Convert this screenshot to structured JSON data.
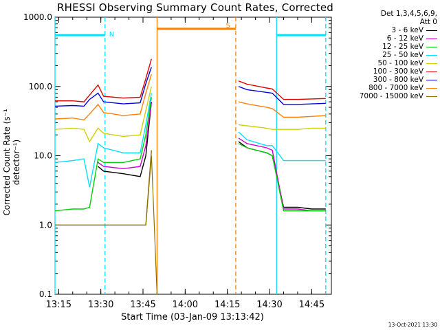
{
  "chart_data": {
    "type": "line",
    "title": "RHESSI Observing Summary Count Rates, Corrected",
    "xlabel": "Start Time (03-Jan-09 13:13:42)",
    "ylabel": "Corrected Count Rate (s⁻¹ detector⁻¹)",
    "y_scale": "log",
    "ylim": [
      0.1,
      1000.0
    ],
    "y_ticks": [
      "1000.0",
      "100.0",
      "10.0",
      "1.0",
      "0.1"
    ],
    "xlim": [
      "13:13:42",
      "14:52:00"
    ],
    "x_ticks": [
      "13:15",
      "13:30",
      "13:45",
      "14:00",
      "14:15",
      "14:30",
      "14:45"
    ],
    "legend_header": [
      "Det 1,3,4,5,6,9,",
      "Att 0"
    ],
    "legend_placement": "top-right outside",
    "timestamp": "13-Oct-2021 13:30",
    "flags": [
      {
        "label": "N",
        "color": "#00e0ff",
        "y": 550,
        "start": "13:13:42",
        "end": "13:31:30"
      },
      {
        "label": "S",
        "color": "#ff8000",
        "y": 680,
        "start": "13:50:00",
        "end": "14:18:00"
      },
      {
        "label": "",
        "color": "#00e0ff",
        "y": 550,
        "start": "14:32:30",
        "end": "14:50:00"
      }
    ],
    "vlines": [
      {
        "time": "13:13:42",
        "color": "#00e0ff",
        "style": "solid"
      },
      {
        "time": "13:31:30",
        "color": "#00e0ff",
        "style": "dashed"
      },
      {
        "time": "13:50:00",
        "color": "#ff8000",
        "style": "solid"
      },
      {
        "time": "14:18:00",
        "color": "#ff8000",
        "style": "dashed"
      },
      {
        "time": "14:32:30",
        "color": "#00e0ff",
        "style": "solid"
      },
      {
        "time": "14:50:00",
        "color": "#00e0ff",
        "style": "dashed"
      }
    ],
    "gaps": [
      [
        "13:48:30",
        "14:19:00"
      ],
      [
        "14:31:30",
        "14:31:30"
      ]
    ],
    "x": [
      "13:13:42",
      "13:20:00",
      "13:24:00",
      "13:26:00",
      "13:29:00",
      "13:31:00",
      "13:38:00",
      "13:44:00",
      "13:46:00",
      "13:48:00",
      "14:19:00",
      "14:22:00",
      "14:29:00",
      "14:31:00",
      "14:35:00",
      "14:40:00",
      "14:45:00",
      "14:50:00"
    ],
    "series": [
      {
        "name": "3 - 6 keV",
        "color": "#000000",
        "values": [
          null,
          null,
          null,
          null,
          7,
          6,
          5.5,
          5,
          10,
          60,
          16,
          13,
          11,
          10,
          1.8,
          1.8,
          1.7,
          1.7
        ]
      },
      {
        "name": "6 - 12 keV",
        "color": "#d000d0",
        "values": [
          null,
          null,
          null,
          null,
          8,
          7,
          6.5,
          7,
          14,
          60,
          18,
          15,
          13,
          12,
          1.7,
          1.7,
          1.6,
          1.6
        ]
      },
      {
        "name": "12 - 25 keV",
        "color": "#00d000",
        "values": [
          1.6,
          1.7,
          1.7,
          1.8,
          9,
          8,
          8,
          9,
          20,
          70,
          15,
          13,
          11,
          10,
          1.6,
          1.6,
          1.6,
          1.6
        ]
      },
      {
        "name": "25 - 50 keV",
        "color": "#00e0ff",
        "values": [
          8,
          8.5,
          9,
          3.5,
          15,
          13,
          11,
          11,
          28,
          80,
          22,
          17,
          14,
          14,
          8.5,
          8.5,
          8.5,
          8.5
        ]
      },
      {
        "name": "50 - 100 keV",
        "color": "#d0d000",
        "values": [
          24,
          25,
          24,
          16,
          25,
          21,
          19,
          20,
          45,
          100,
          28,
          27,
          25,
          24,
          24,
          24,
          25,
          25
        ]
      },
      {
        "name": "100 - 300 keV",
        "color": "#e00000",
        "values": [
          62,
          62,
          60,
          75,
          105,
          72,
          68,
          70,
          130,
          250,
          120,
          108,
          95,
          92,
          65,
          65,
          66,
          67
        ]
      },
      {
        "name": "300 - 800 keV",
        "color": "#0000e0",
        "values": [
          52,
          53,
          52,
          65,
          80,
          60,
          56,
          58,
          110,
          190,
          100,
          90,
          82,
          80,
          55,
          55,
          56,
          57
        ]
      },
      {
        "name": "800 - 7000 keV",
        "color": "#ff8000",
        "values": [
          34,
          35,
          33,
          40,
          55,
          42,
          38,
          40,
          80,
          150,
          60,
          56,
          50,
          48,
          36,
          36,
          37,
          38
        ]
      },
      {
        "name": "7000 - 15000 keV",
        "color": "#8c7000",
        "values": [
          1,
          1,
          1,
          1,
          1,
          1,
          1,
          1,
          1,
          12,
          null,
          null,
          null,
          null,
          null,
          null,
          null,
          null
        ]
      }
    ],
    "extra_lines": [
      {
        "color": "#8c7000",
        "x": [
          "13:46:00",
          "13:48:00",
          "13:49:00",
          "13:50:00"
        ],
        "y": [
          1,
          10,
          1,
          0.1
        ]
      }
    ],
    "grid": false
  }
}
